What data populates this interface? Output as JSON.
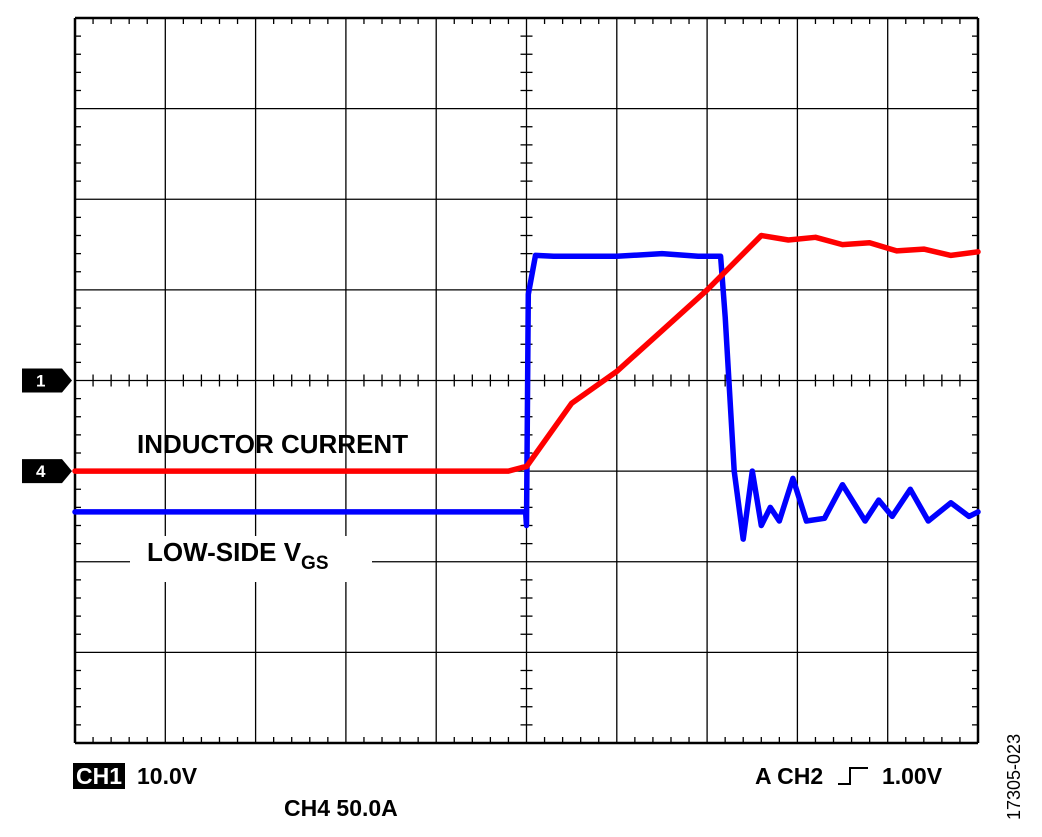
{
  "chart_data": {
    "type": "line",
    "title": "",
    "grid": true,
    "x_divisions": 10,
    "y_divisions": 8,
    "minor_ticks_per_division": 5,
    "xlim": [
      0,
      10
    ],
    "ylim": [
      -4,
      4
    ],
    "series": [
      {
        "name": "INDUCTOR CURRENT",
        "color": "#ff0000",
        "channel_marker": "4",
        "x": [
          0,
          4.8,
          4.95,
          5.0,
          5.5,
          6.0,
          6.5,
          7.0,
          7.3,
          7.6,
          7.9,
          8.2,
          8.5,
          8.8,
          9.1,
          9.4,
          9.7,
          10.0
        ],
        "y": [
          -1.0,
          -1.0,
          -0.96,
          -0.95,
          -0.25,
          0.1,
          0.55,
          1.0,
          1.3,
          1.6,
          1.55,
          1.58,
          1.5,
          1.52,
          1.43,
          1.45,
          1.38,
          1.42
        ]
      },
      {
        "name": "LOW-SIDE VGS",
        "color": "#0000ff",
        "x": [
          0,
          4.99,
          5.0,
          5.02,
          5.1,
          5.3,
          6.0,
          6.5,
          6.9,
          7.15,
          7.2,
          7.3,
          7.4,
          7.5,
          7.6,
          7.7,
          7.8,
          7.95,
          8.1,
          8.3,
          8.5,
          8.75,
          8.9,
          9.05,
          9.25,
          9.45,
          9.7,
          9.9,
          10.0
        ],
        "y": [
          -1.45,
          -1.45,
          -1.6,
          0.95,
          1.38,
          1.37,
          1.37,
          1.4,
          1.37,
          1.37,
          0.7,
          -1.0,
          -1.75,
          -1.0,
          -1.6,
          -1.4,
          -1.55,
          -1.08,
          -1.55,
          -1.52,
          -1.15,
          -1.55,
          -1.32,
          -1.5,
          -1.2,
          -1.55,
          -1.35,
          -1.5,
          -1.45
        ]
      }
    ],
    "markers": [
      {
        "label": "1",
        "y": 0
      },
      {
        "label": "4",
        "y": -1.0
      }
    ],
    "annotations": {
      "inductor_label": "INDUCTOR CURRENT",
      "vgs_main": "LOW-SIDE V",
      "vgs_sub": "GS"
    }
  },
  "footer": {
    "ch1_badge": "CH1",
    "ch1_scale": "10.0V",
    "ch4_scale": "CH4 50.0A",
    "trigger_label": "A  CH2",
    "trigger_edge_icon": "rising-edge-icon",
    "trigger_level": "1.00V"
  },
  "figure_id": "17305-023"
}
